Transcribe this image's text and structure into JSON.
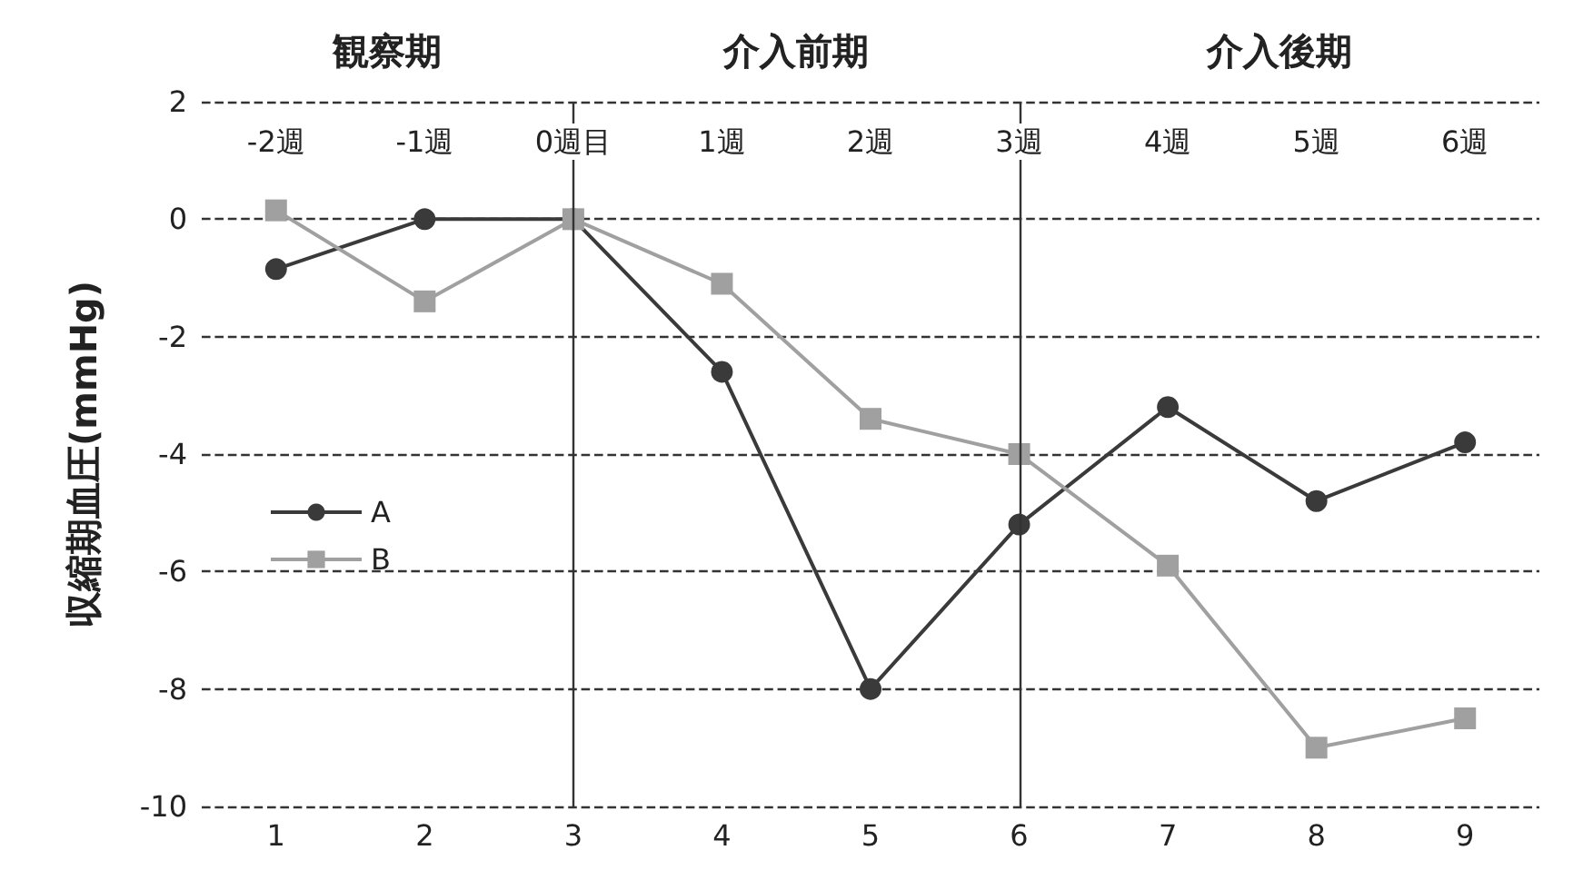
{
  "chart_data": {
    "type": "line",
    "ylabel": "収縮期血圧(mmHg)",
    "annotations": [
      "観察期",
      "介入前期",
      "介入後期",
      {
        "text": "-2週",
        "x": "1"
      },
      {
        "text": "-1週",
        "x": "2"
      },
      {
        "text": "0週目",
        "x": "3"
      },
      {
        "text": "1週",
        "x": "4"
      },
      {
        "text": "2週",
        "x": "5"
      },
      {
        "text": "3週",
        "x": "6"
      },
      {
        "text": "4週",
        "x": "7"
      },
      {
        "text": "5週",
        "x": "8"
      },
      {
        "text": "6週",
        "x": "9"
      }
    ],
    "categories": [
      "1",
      "2",
      "3",
      "4",
      "5",
      "6",
      "7",
      "8",
      "9"
    ],
    "ylim": [
      -10,
      2
    ],
    "yticks": [
      -10,
      -8,
      -6,
      -4,
      -2,
      0,
      2
    ],
    "series": [
      {
        "name": "A",
        "color": "#3a3a3a",
        "marker": "circle",
        "values": [
          -0.85,
          0,
          0,
          -2.6,
          -8.0,
          -5.2,
          -3.2,
          -4.8,
          -3.8
        ]
      },
      {
        "name": "B",
        "color": "#a0a0a0",
        "marker": "square",
        "values": [
          0.15,
          -1.4,
          0,
          -1.1,
          -3.4,
          -4.0,
          -5.9,
          -9.0,
          -8.5
        ]
      }
    ],
    "ref_lines": [
      {
        "axis": "x",
        "value": "3",
        "color": "#333333",
        "line_style": "solid"
      },
      {
        "axis": "x",
        "value": "6",
        "color": "#333333",
        "line_style": "solid"
      }
    ],
    "grid": "y",
    "line_style": "solid",
    "legend": "bottom left"
  }
}
